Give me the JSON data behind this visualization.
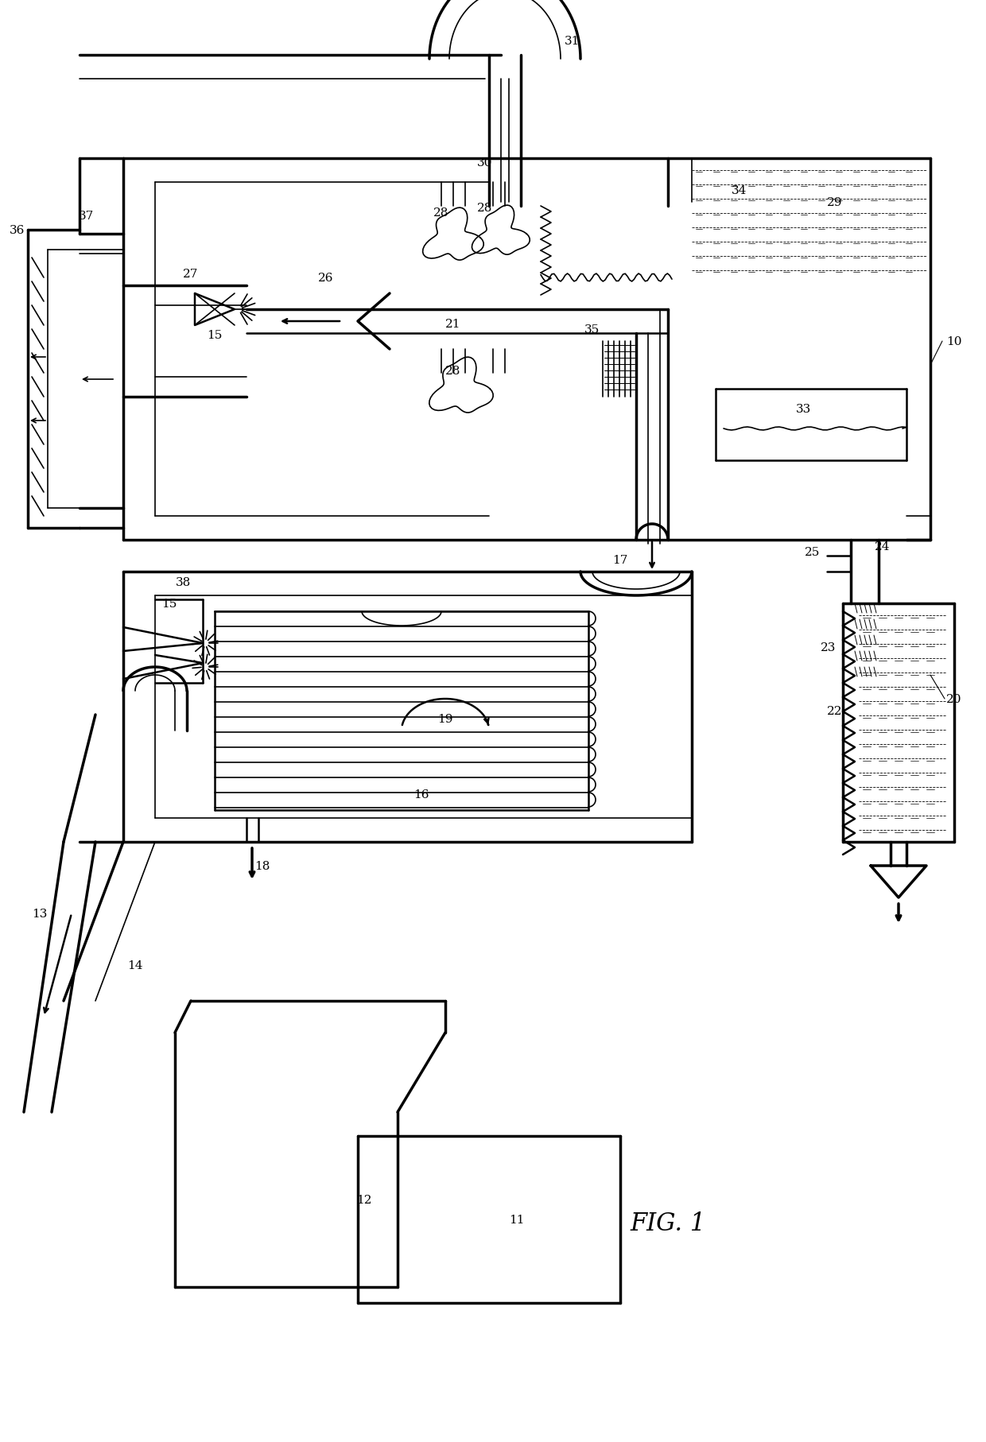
{
  "bg_color": "#ffffff",
  "line_color": "#000000",
  "fig_width": 12.4,
  "fig_height": 18.15
}
